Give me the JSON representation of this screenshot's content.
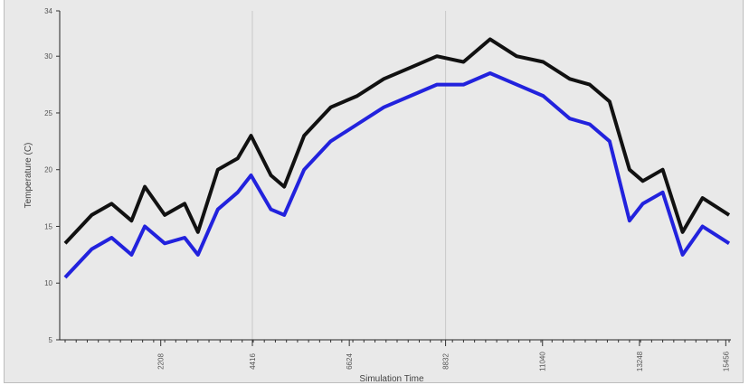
{
  "chart_data": {
    "type": "line",
    "title": "",
    "xlabel": "Simulation Time",
    "ylabel": "Temperature (C)",
    "ylim": [
      5,
      34
    ],
    "yticks": [
      5,
      10,
      15,
      20,
      25,
      30,
      34
    ],
    "xlim": [
      0,
      1
    ],
    "xticks": [
      {
        "x": 0.144,
        "label": "2208"
      },
      {
        "x": 0.282,
        "label": "4416"
      },
      {
        "x": 0.428,
        "label": "6624"
      },
      {
        "x": 0.573,
        "label": "8832"
      },
      {
        "x": 0.719,
        "label": "11040"
      },
      {
        "x": 0.865,
        "label": "13248"
      },
      {
        "x": 0.995,
        "label": "15456"
      }
    ],
    "vertical_gridlines_at": [
      0.282,
      0.573
    ],
    "grid": false,
    "legend": "none",
    "series": [
      {
        "color": "#111111",
        "x": [
          0.0,
          0.04,
          0.07,
          0.1,
          0.12,
          0.15,
          0.18,
          0.2,
          0.23,
          0.26,
          0.28,
          0.31,
          0.33,
          0.36,
          0.4,
          0.44,
          0.48,
          0.52,
          0.56,
          0.6,
          0.64,
          0.68,
          0.72,
          0.76,
          0.79,
          0.82,
          0.85,
          0.87,
          0.9,
          0.93,
          0.96,
          1.0
        ],
        "values": [
          13.5,
          16,
          17,
          15.5,
          18.5,
          16,
          17,
          14.5,
          20,
          21,
          23,
          19.5,
          18.5,
          23,
          25.5,
          26.5,
          28,
          29,
          30,
          29.5,
          31.5,
          30,
          29.5,
          28,
          27.5,
          26,
          20,
          19,
          20,
          14.5,
          17.5,
          16
        ]
      },
      {
        "color": "#2222dd",
        "x": [
          0.0,
          0.04,
          0.07,
          0.1,
          0.12,
          0.15,
          0.18,
          0.2,
          0.23,
          0.26,
          0.28,
          0.31,
          0.33,
          0.36,
          0.4,
          0.44,
          0.48,
          0.52,
          0.56,
          0.6,
          0.64,
          0.68,
          0.72,
          0.76,
          0.79,
          0.82,
          0.85,
          0.87,
          0.9,
          0.93,
          0.96,
          1.0
        ],
        "values": [
          10.5,
          13,
          14,
          12.5,
          15,
          13.5,
          14,
          12.5,
          16.5,
          18,
          19.5,
          16.5,
          16,
          20,
          22.5,
          24,
          25.5,
          26.5,
          27.5,
          27.5,
          28.5,
          27.5,
          26.5,
          24.5,
          24,
          22.5,
          15.5,
          17,
          18,
          12.5,
          15,
          13.5
        ]
      }
    ]
  },
  "colors": {
    "background": "#e9e9e9",
    "series_black": "#111111",
    "series_blue": "#2222dd"
  }
}
